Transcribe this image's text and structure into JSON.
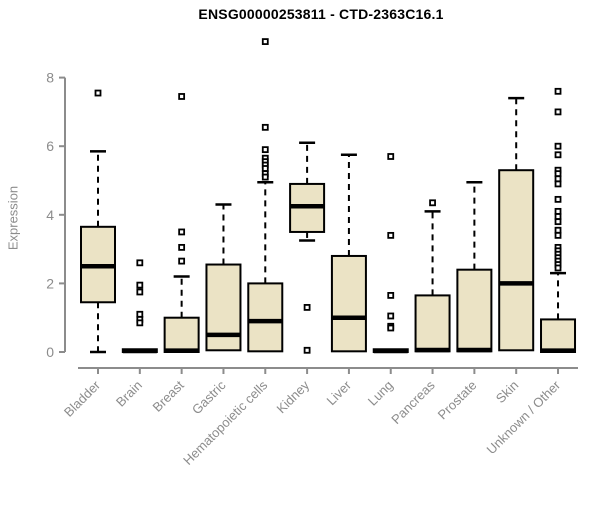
{
  "page": {
    "background": "#ffffff"
  },
  "chart_data": {
    "type": "boxplot",
    "title": "ENSG00000253811 - CTD-2363C16.1",
    "xlabel": "",
    "ylabel": "Expression",
    "ylim": [
      0,
      8
    ],
    "yticks": [
      0,
      2,
      4,
      6,
      8
    ],
    "grid": "off",
    "legend": "none",
    "categories": [
      "Bladder",
      "Brain",
      "Breast",
      "Gastric",
      "Hematopoietic cells",
      "Kidney",
      "Liver",
      "Lung",
      "Pancreas",
      "Prostate",
      "Skin",
      "Unknown / Other"
    ],
    "series": [
      {
        "name": "Bladder",
        "whisker_low": 0,
        "q1": 1.45,
        "median": 2.5,
        "q3": 3.65,
        "whisker_high": 5.85,
        "outliers": [
          7.55
        ]
      },
      {
        "name": "Brain",
        "whisker_low": 0,
        "q1": 0,
        "median": 0.03,
        "q3": 0.08,
        "whisker_high": 0.08,
        "outliers": [
          2.6,
          1.95,
          1.75,
          1.1,
          0.95,
          0.85
        ]
      },
      {
        "name": "Breast",
        "whisker_low": 0,
        "q1": 0,
        "median": 0.04,
        "q3": 1.0,
        "whisker_high": 2.2,
        "outliers": [
          7.45,
          3.5,
          3.05,
          2.65
        ]
      },
      {
        "name": "Gastric",
        "whisker_low": 0.05,
        "q1": 0.05,
        "median": 0.5,
        "q3": 2.55,
        "whisker_high": 4.3,
        "outliers": []
      },
      {
        "name": "Hematopoietic cells",
        "whisker_low": 0,
        "q1": 0.02,
        "median": 0.9,
        "q3": 2.0,
        "whisker_high": 4.95,
        "outliers": [
          9.05,
          6.55,
          5.9,
          5.65,
          5.55,
          5.45,
          5.35,
          5.2,
          5.1
        ]
      },
      {
        "name": "Kidney",
        "whisker_low": 3.25,
        "q1": 3.5,
        "median": 4.25,
        "q3": 4.9,
        "whisker_high": 6.1,
        "outliers": [
          1.3,
          0.05
        ]
      },
      {
        "name": "Liver",
        "whisker_low": 0,
        "q1": 0.02,
        "median": 1.0,
        "q3": 2.8,
        "whisker_high": 5.75,
        "outliers": []
      },
      {
        "name": "Lung",
        "whisker_low": 0,
        "q1": 0,
        "median": 0.03,
        "q3": 0.08,
        "whisker_high": 0.08,
        "outliers": [
          5.7,
          3.4,
          1.65,
          1.05,
          0.75,
          0.7
        ]
      },
      {
        "name": "Pancreas",
        "whisker_low": 0,
        "q1": 0.02,
        "median": 0.06,
        "q3": 1.65,
        "whisker_high": 4.1,
        "outliers": [
          4.35
        ]
      },
      {
        "name": "Prostate",
        "whisker_low": 0,
        "q1": 0.02,
        "median": 0.06,
        "q3": 2.4,
        "whisker_high": 4.95,
        "outliers": []
      },
      {
        "name": "Skin",
        "whisker_low": 0.05,
        "q1": 0.05,
        "median": 2.0,
        "q3": 5.3,
        "whisker_high": 7.4,
        "outliers": []
      },
      {
        "name": "Unknown / Other",
        "whisker_low": 0,
        "q1": 0,
        "median": 0.04,
        "q3": 0.95,
        "whisker_high": 2.3,
        "outliers": [
          7.6,
          7.0,
          6.0,
          5.75,
          5.3,
          5.2,
          5.05,
          4.9,
          4.45,
          4.1,
          3.95,
          3.8,
          3.55,
          3.4,
          3.05,
          2.95,
          2.85,
          2.75,
          2.65,
          2.55,
          2.45
        ]
      }
    ],
    "colors": {
      "box_fill": "#ebe3c5",
      "box_border": "#000000",
      "median": "#000000",
      "whisker": "#000000",
      "outlier": "#000000",
      "axis": "#8c8c8c",
      "tick_label": "#8c8c8c",
      "title": "#000000"
    }
  }
}
